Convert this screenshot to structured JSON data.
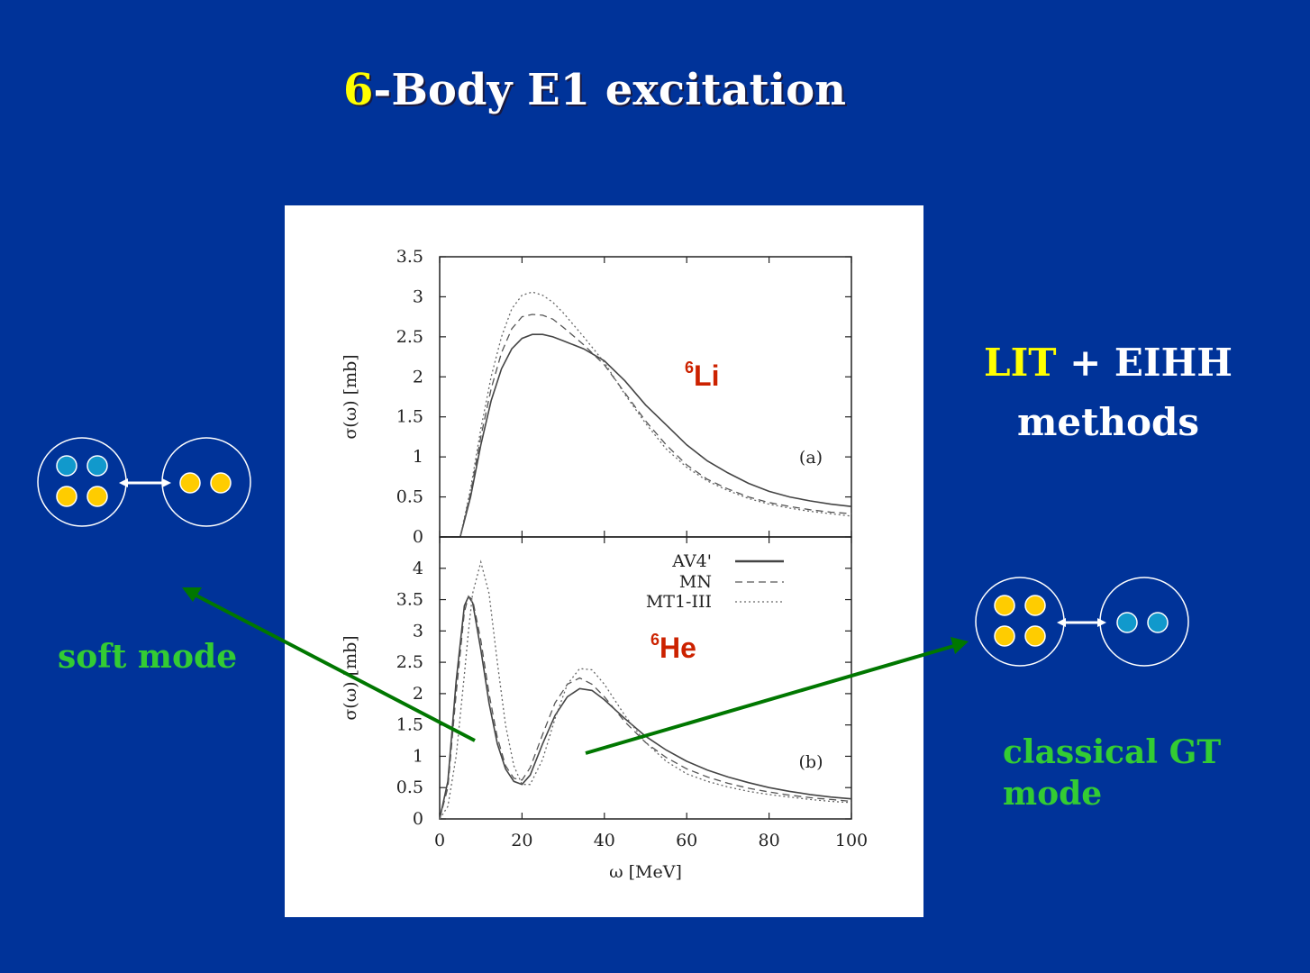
{
  "slide": {
    "title_highlight": "6",
    "title_rest": "-Body E1 excitation",
    "methods_highlight": "LIT",
    "methods_rest": " +  EIHH",
    "methods_line2": "methods",
    "soft_mode_label": "soft mode",
    "gt_mode_label": "classical GT mode",
    "colors": {
      "background": "#003399",
      "highlight": "#ffff00",
      "mode_label": "#33cc33",
      "arrow": "#007700",
      "proton": "#ffcc00",
      "neutron": "#1199cc",
      "nucleus_label": "#cc2200"
    }
  },
  "chart_data": [
    {
      "type": "line",
      "panel_label": "(a)",
      "nucleus_mass": "6",
      "nucleus_symbol": "Li",
      "xlabel": "",
      "ylabel": "σ(ω) [mb]",
      "xlim": [
        0,
        100
      ],
      "ylim": [
        0,
        3.5
      ],
      "yticks": [
        "0",
        "0.5",
        "1",
        "1.5",
        "2",
        "2.5",
        "3",
        "3.5"
      ],
      "x": [
        0,
        2.5,
        5,
        7.5,
        10,
        12.5,
        15,
        17.5,
        20,
        22.5,
        25,
        27.5,
        30,
        35,
        40,
        45,
        50,
        55,
        60,
        65,
        70,
        75,
        80,
        85,
        90,
        95,
        100
      ],
      "series": [
        {
          "name": "AV4'",
          "style": "solid",
          "values": [
            0,
            0,
            0,
            0.5,
            1.15,
            1.7,
            2.1,
            2.35,
            2.48,
            2.53,
            2.53,
            2.5,
            2.45,
            2.35,
            2.2,
            1.95,
            1.65,
            1.4,
            1.15,
            0.95,
            0.8,
            0.67,
            0.57,
            0.5,
            0.45,
            0.41,
            0.38
          ]
        },
        {
          "name": "MN",
          "style": "dashed",
          "values": [
            0,
            0,
            0,
            0.55,
            1.25,
            1.85,
            2.3,
            2.6,
            2.75,
            2.78,
            2.77,
            2.72,
            2.62,
            2.4,
            2.15,
            1.8,
            1.45,
            1.15,
            0.9,
            0.72,
            0.6,
            0.5,
            0.43,
            0.38,
            0.34,
            0.31,
            0.29
          ]
        },
        {
          "name": "MT1-III",
          "style": "dotted",
          "values": [
            0,
            0,
            0,
            0.6,
            1.35,
            2.0,
            2.5,
            2.85,
            3.02,
            3.06,
            3.02,
            2.93,
            2.8,
            2.5,
            2.18,
            1.78,
            1.42,
            1.1,
            0.87,
            0.7,
            0.58,
            0.48,
            0.41,
            0.36,
            0.32,
            0.29,
            0.26
          ]
        }
      ]
    },
    {
      "type": "line",
      "panel_label": "(b)",
      "nucleus_mass": "6",
      "nucleus_symbol": "He",
      "xlabel": "ω  [MeV]",
      "ylabel": "σ(ω) [mb]",
      "xlim": [
        0,
        100
      ],
      "ylim": [
        0,
        4.5
      ],
      "yticks": [
        "0",
        "0.5",
        "1",
        "1.5",
        "2",
        "2.5",
        "3",
        "3.5",
        "4"
      ],
      "xticks": [
        "0",
        "20",
        "40",
        "60",
        "80",
        "100"
      ],
      "legend_position": "top-right",
      "x": [
        0,
        2,
        4,
        6,
        7,
        8,
        10,
        12,
        14,
        16,
        18,
        20,
        22,
        25,
        28,
        31,
        34,
        37,
        40,
        45,
        50,
        55,
        60,
        65,
        70,
        75,
        80,
        85,
        90,
        95,
        100
      ],
      "series": [
        {
          "name": "AV4'",
          "style": "solid",
          "values": [
            0,
            0.6,
            2.2,
            3.4,
            3.55,
            3.45,
            2.7,
            1.85,
            1.2,
            0.8,
            0.6,
            0.55,
            0.7,
            1.2,
            1.65,
            1.95,
            2.08,
            2.05,
            1.9,
            1.6,
            1.32,
            1.1,
            0.92,
            0.78,
            0.67,
            0.58,
            0.5,
            0.44,
            0.39,
            0.35,
            0.32
          ]
        },
        {
          "name": "MN",
          "style": "dashed",
          "values": [
            0,
            0.5,
            2.0,
            3.3,
            3.55,
            3.5,
            2.85,
            2.0,
            1.3,
            0.85,
            0.65,
            0.62,
            0.82,
            1.35,
            1.85,
            2.15,
            2.25,
            2.15,
            1.95,
            1.55,
            1.22,
            0.98,
            0.8,
            0.67,
            0.57,
            0.49,
            0.43,
            0.38,
            0.34,
            0.31,
            0.28
          ]
        },
        {
          "name": "MT1-III",
          "style": "dotted",
          "values": [
            0,
            0.2,
            1.0,
            2.3,
            3.0,
            3.6,
            4.1,
            3.6,
            2.5,
            1.5,
            0.85,
            0.55,
            0.55,
            0.95,
            1.6,
            2.15,
            2.4,
            2.38,
            2.15,
            1.65,
            1.22,
            0.92,
            0.72,
            0.6,
            0.51,
            0.44,
            0.39,
            0.35,
            0.31,
            0.28,
            0.26
          ]
        }
      ]
    }
  ]
}
